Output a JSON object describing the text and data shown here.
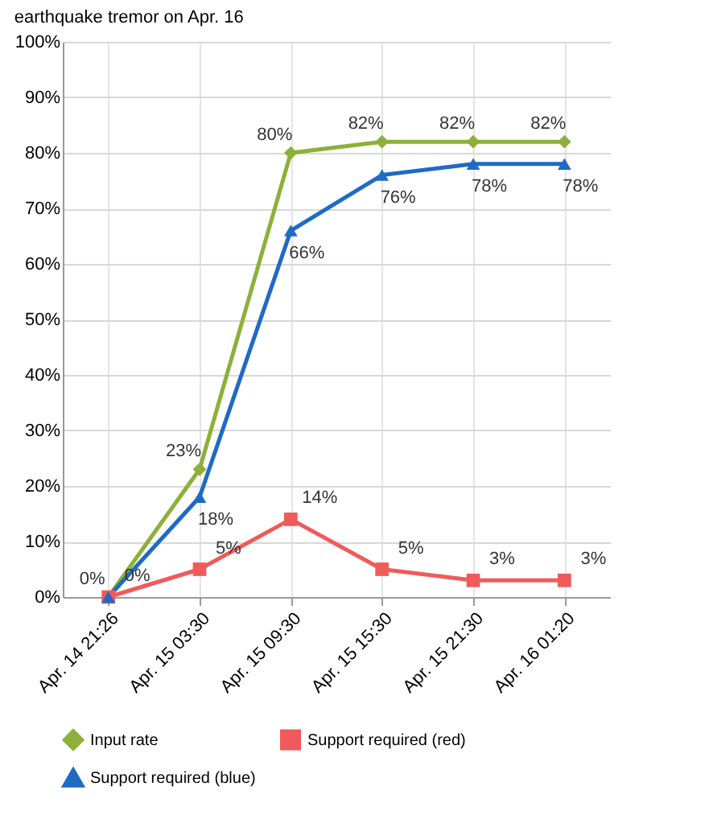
{
  "chart_data": {
    "type": "line",
    "title": "earthquake tremor on Apr. 16",
    "categories": [
      "Apr. 14  21:26",
      "Apr. 15  03:30",
      "Apr. 15  09:30",
      "Apr. 15  15:30",
      "Apr. 15  21:30",
      "Apr. 16  01:20"
    ],
    "series": [
      {
        "name": "Input rate",
        "color": "#8db03a",
        "marker": "diamond",
        "values": [
          0,
          23,
          80,
          82,
          82,
          82
        ],
        "value_labels": [
          "0%",
          "23%",
          "80%",
          "82%",
          "82%",
          "82%"
        ]
      },
      {
        "name": "Support required (red)",
        "color": "#f05a5a",
        "marker": "square",
        "values": [
          0,
          5,
          14,
          5,
          3,
          3
        ],
        "value_labels": [
          "0%",
          "5%",
          "14%",
          "5%",
          "3%",
          "3%"
        ]
      },
      {
        "name": "Support required (blue)",
        "color": "#1f6bc4",
        "marker": "triangle",
        "values": [
          0,
          18,
          66,
          76,
          78,
          78
        ],
        "value_labels": [
          null,
          "18%",
          "66%",
          "76%",
          "78%",
          "78%"
        ]
      }
    ],
    "ylim": [
      0,
      100
    ],
    "yticks": [
      {
        "value": 0,
        "label": "0%"
      },
      {
        "value": 10,
        "label": "10%"
      },
      {
        "value": 20,
        "label": "20%"
      },
      {
        "value": 30,
        "label": "30%"
      },
      {
        "value": 40,
        "label": "40%"
      },
      {
        "value": 50,
        "label": "50%"
      },
      {
        "value": 60,
        "label": "60%"
      },
      {
        "value": 70,
        "label": "70%"
      },
      {
        "value": 80,
        "label": "80%"
      },
      {
        "value": 90,
        "label": "90%"
      },
      {
        "value": 100,
        "label": "100%"
      }
    ],
    "grid": true,
    "legend": "bottom",
    "line_style": "solid"
  }
}
